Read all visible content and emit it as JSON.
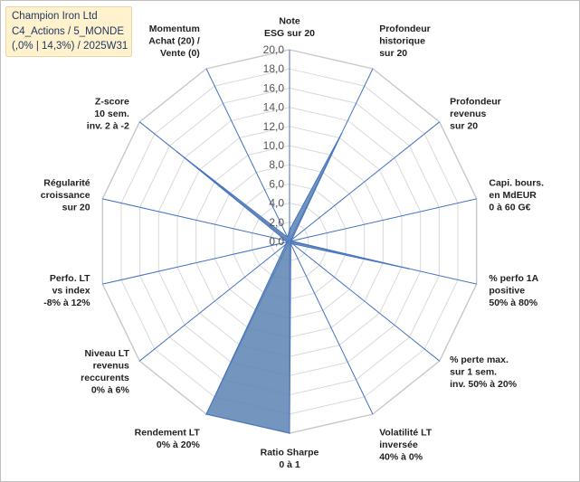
{
  "header": {
    "line1": "Champion Iron Ltd",
    "line2": "C4_Actions / 5_MONDE",
    "line3": "(,0% | 14,3%) / 2025W31"
  },
  "colors": {
    "fill": "#5b82b3",
    "stroke": "#4472c4",
    "grid": "#d9d9d9",
    "spoke": "#4472c4",
    "title_bg": "#fff2cc"
  },
  "chart_data": {
    "type": "radar",
    "rmin": 0,
    "rmax": 20,
    "ticks": [
      "0,0",
      "2,0",
      "4,0",
      "6,0",
      "8,0",
      "10,0",
      "12,0",
      "14,0",
      "16,0",
      "18,0",
      "20,0"
    ],
    "grid": true,
    "axes": [
      {
        "label": [
          "Note",
          "ESG sur 20"
        ],
        "value": 1.2
      },
      {
        "label": [
          "Profondeur",
          "historique",
          "sur 20"
        ],
        "value": 12.5
      },
      {
        "label": [
          "Profondeur",
          "revenus",
          "sur 20"
        ],
        "value": 0.3
      },
      {
        "label": [
          "Capi. bours.",
          "en MdEUR",
          "0 à 60 G€"
        ],
        "value": 0.2
      },
      {
        "label": [
          "% perfo 1A",
          "positive",
          "50% à 80%"
        ],
        "value": 12.7
      },
      {
        "label": [
          "% perte max.",
          "sur 1 sem.",
          "inv. 50% à 20%"
        ],
        "value": 0.4
      },
      {
        "label": [
          "Volatilité LT",
          "inversée",
          "40% à 0%"
        ],
        "value": 0.3
      },
      {
        "label": [
          "Ratio Sharpe",
          "0 à 1"
        ],
        "value": 20.0
      },
      {
        "label": [
          "Rendement LT",
          "0% à 20%"
        ],
        "value": 20.0
      },
      {
        "label": [
          "Niveau LT",
          "revenus",
          "reccurents",
          "0% à 6%"
        ],
        "value": 0.5
      },
      {
        "label": [
          "Perfo. LT",
          "vs index",
          "-8% à 12%"
        ],
        "value": 0.3
      },
      {
        "label": [
          "Régularité",
          "croissance",
          "sur 20"
        ],
        "value": 0.4
      },
      {
        "label": [
          "Z-score",
          "10 sem.",
          "inv. 2 à -2"
        ],
        "value": 15.0
      },
      {
        "label": [
          "Momentum",
          "Achat (20) /",
          "Vente (0)"
        ],
        "value": 0.5
      }
    ]
  }
}
